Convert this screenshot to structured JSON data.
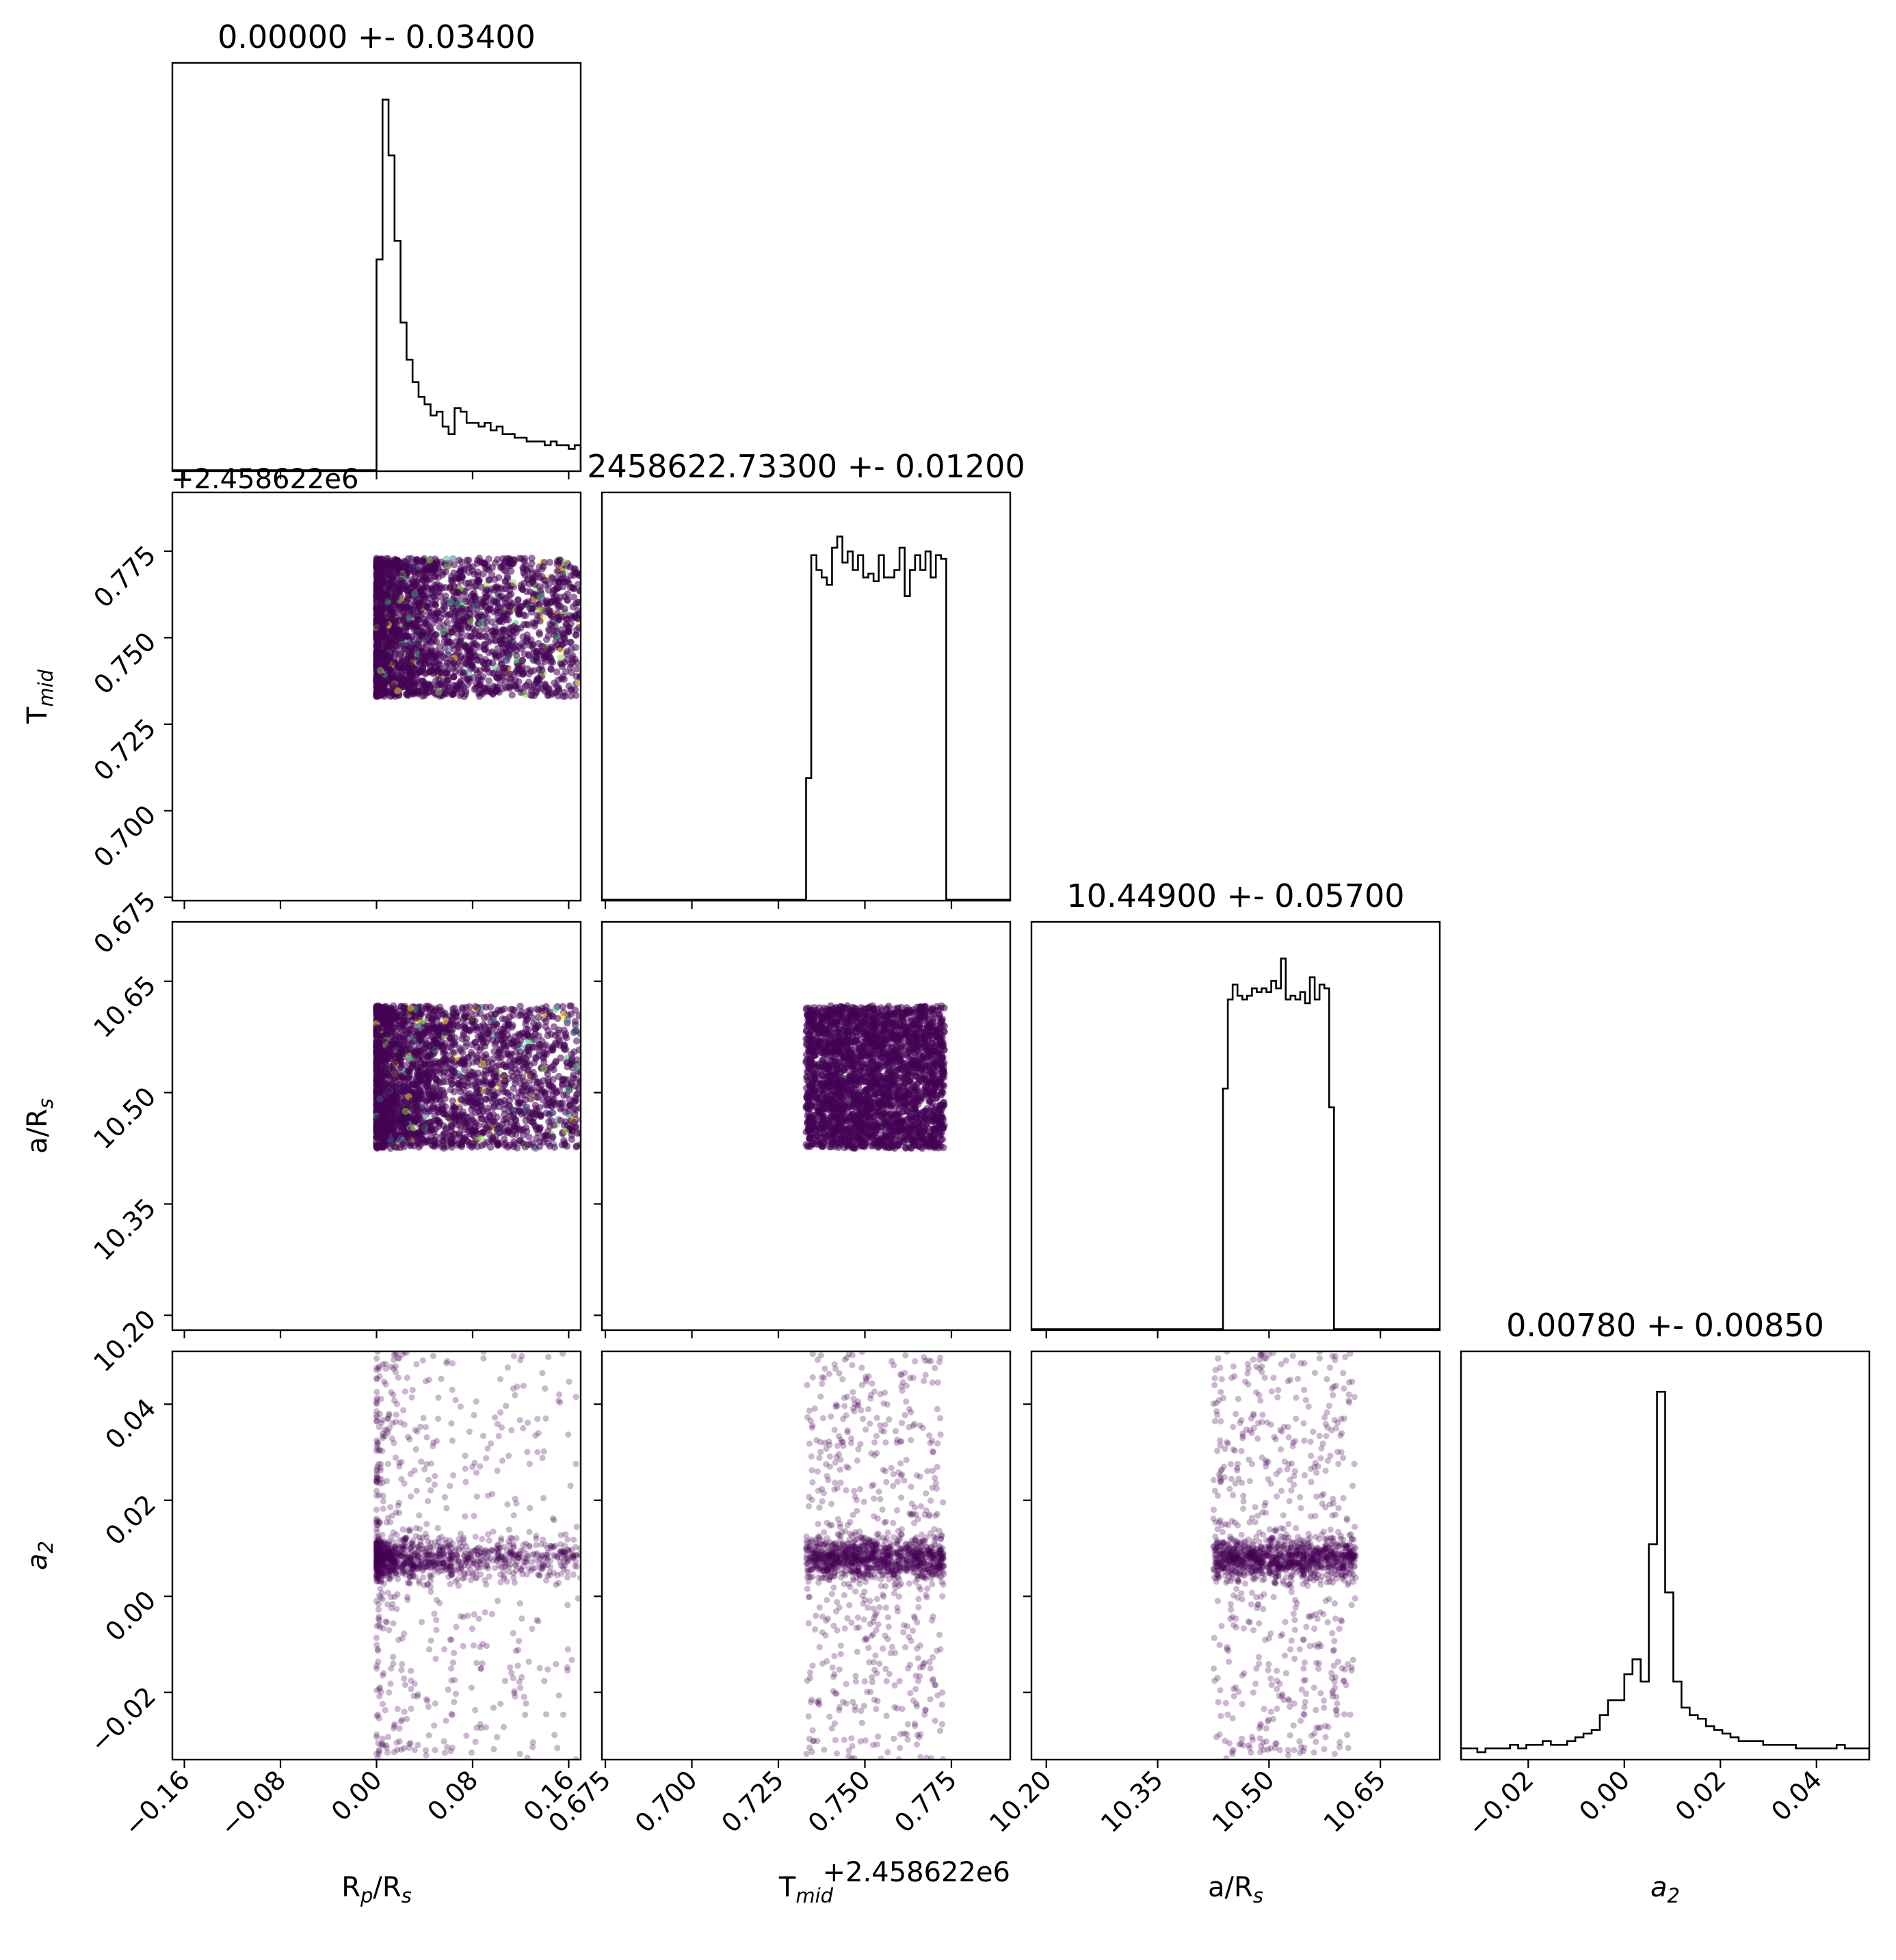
{
  "chart_data": {
    "type": "corner",
    "parameters": [
      {
        "key": "rp",
        "label": "R",
        "sub": "p",
        "suffix": "/R",
        "suffix_sub": "s",
        "range": [
          -0.17,
          0.17
        ],
        "ticks": [
          -0.16,
          -0.08,
          0.0,
          0.08,
          0.16
        ],
        "tick_labels": [
          "−0.16",
          "−0.08",
          "0.00",
          "0.08",
          "0.16"
        ]
      },
      {
        "key": "tmid",
        "label": "T",
        "sub": "mid",
        "suffix": "",
        "suffix_sub": "",
        "range": [
          0.674,
          0.792
        ],
        "ticks": [
          0.675,
          0.7,
          0.725,
          0.75,
          0.775
        ],
        "tick_labels": [
          "0.675",
          "0.700",
          "0.725",
          "0.750",
          "0.775"
        ],
        "offset_text": "+2.458622e6"
      },
      {
        "key": "ars",
        "label": "a/R",
        "sub": "s",
        "suffix": "",
        "suffix_sub": "",
        "range": [
          10.18,
          10.73
        ],
        "ticks": [
          10.2,
          10.35,
          10.5,
          10.65
        ],
        "tick_labels": [
          "10.20",
          "10.35",
          "10.50",
          "10.65"
        ]
      },
      {
        "key": "a2",
        "label": "a",
        "sub": "2",
        "suffix": "",
        "suffix_sub": "",
        "italic": true,
        "range": [
          -0.034,
          0.051
        ],
        "ticks": [
          -0.02,
          0.0,
          0.02,
          0.04
        ],
        "tick_labels": [
          "−0.02",
          "0.00",
          "0.02",
          "0.04"
        ]
      }
    ],
    "titles": [
      "0.00000 +- 0.03400",
      "2458622.73300 +- 0.01200",
      "10.44900 +- 0.05700",
      "0.00780 +- 0.00850"
    ],
    "left_offset_text": "+2.458622e6",
    "histograms": [
      {
        "bin_start": 0.0,
        "bin_width": 0.005,
        "heights": [
          0.57,
          1.0,
          0.85,
          0.62,
          0.4,
          0.3,
          0.24,
          0.2,
          0.18,
          0.15,
          0.16,
          0.12,
          0.1,
          0.17,
          0.16,
          0.13,
          0.13,
          0.12,
          0.13,
          0.11,
          0.12,
          0.1,
          0.1,
          0.09,
          0.09,
          0.08,
          0.08,
          0.08,
          0.07,
          0.08,
          0.07,
          0.07,
          0.06,
          0.07
        ]
      },
      {
        "bin_start": 0.733,
        "bin_width": 0.0015,
        "heights": [
          0.33,
          0.93,
          0.89,
          0.87,
          0.85,
          0.95,
          0.98,
          0.91,
          0.94,
          0.89,
          0.93,
          0.87,
          0.88,
          0.86,
          0.93,
          0.87,
          0.87,
          0.89,
          0.95,
          0.82,
          0.89,
          0.93,
          0.89,
          0.94,
          0.87,
          0.93,
          0.92
        ]
      },
      {
        "bin_start": 10.438,
        "bin_width": 0.0065,
        "heights": [
          0.65,
          0.89,
          0.93,
          0.9,
          0.89,
          0.9,
          0.92,
          0.91,
          0.92,
          0.91,
          0.94,
          0.92,
          1.0,
          0.89,
          0.9,
          0.89,
          0.91,
          0.88,
          0.95,
          0.89,
          0.93,
          0.92,
          0.6
        ]
      },
      {
        "bin_start": -0.034,
        "bin_width": 0.0017,
        "heights": [
          0.03,
          0.03,
          0.02,
          0.03,
          0.03,
          0.03,
          0.04,
          0.03,
          0.04,
          0.04,
          0.05,
          0.04,
          0.04,
          0.05,
          0.06,
          0.07,
          0.08,
          0.12,
          0.16,
          0.16,
          0.23,
          0.27,
          0.21,
          0.58,
          0.99,
          0.45,
          0.21,
          0.14,
          0.12,
          0.11,
          0.09,
          0.08,
          0.07,
          0.06,
          0.05,
          0.05,
          0.05,
          0.04,
          0.04,
          0.04,
          0.04,
          0.03,
          0.03,
          0.03,
          0.03,
          0.03,
          0.04,
          0.03,
          0.03,
          0.03
        ]
      }
    ],
    "scatter_extents": {
      "rp": [
        0.0,
        0.17
      ],
      "tmid": [
        0.733,
        0.773
      ],
      "ars": [
        10.425,
        10.617
      ],
      "a2": [
        -0.034,
        0.051
      ],
      "a2_core": [
        0.0055,
        0.0105
      ]
    },
    "colors": {
      "points": "#440154",
      "highlights": [
        "#fde725",
        "#35b779",
        "#31688e",
        "#90d743"
      ],
      "hist_line": "#000000"
    }
  }
}
